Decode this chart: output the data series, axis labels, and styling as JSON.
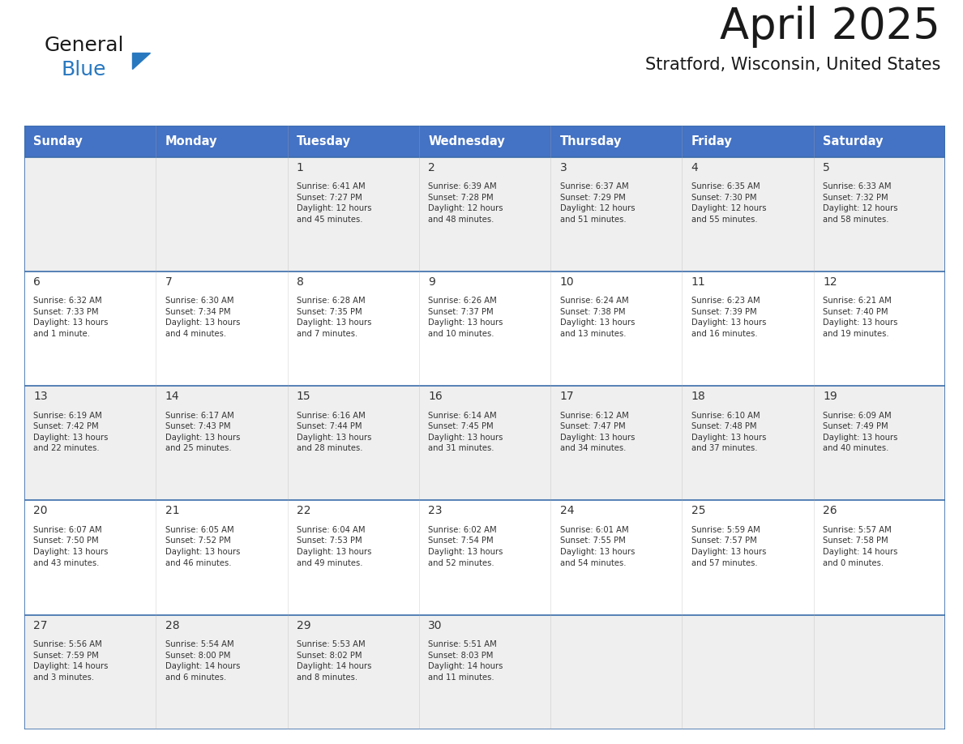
{
  "title": "April 2025",
  "subtitle": "Stratford, Wisconsin, United States",
  "header_bg": "#4472C4",
  "header_text_color": "#FFFFFF",
  "day_names": [
    "Sunday",
    "Monday",
    "Tuesday",
    "Wednesday",
    "Thursday",
    "Friday",
    "Saturday"
  ],
  "row_bg_odd": "#EFEFEF",
  "row_bg_even": "#FFFFFF",
  "cell_text_color": "#333333",
  "grid_color": "#3A6DAA",
  "logo_general_color": "#1a1a1a",
  "logo_blue_color": "#2878C0",
  "calendar": [
    [
      {
        "day": "",
        "info": ""
      },
      {
        "day": "",
        "info": ""
      },
      {
        "day": "1",
        "info": "Sunrise: 6:41 AM\nSunset: 7:27 PM\nDaylight: 12 hours\nand 45 minutes."
      },
      {
        "day": "2",
        "info": "Sunrise: 6:39 AM\nSunset: 7:28 PM\nDaylight: 12 hours\nand 48 minutes."
      },
      {
        "day": "3",
        "info": "Sunrise: 6:37 AM\nSunset: 7:29 PM\nDaylight: 12 hours\nand 51 minutes."
      },
      {
        "day": "4",
        "info": "Sunrise: 6:35 AM\nSunset: 7:30 PM\nDaylight: 12 hours\nand 55 minutes."
      },
      {
        "day": "5",
        "info": "Sunrise: 6:33 AM\nSunset: 7:32 PM\nDaylight: 12 hours\nand 58 minutes."
      }
    ],
    [
      {
        "day": "6",
        "info": "Sunrise: 6:32 AM\nSunset: 7:33 PM\nDaylight: 13 hours\nand 1 minute."
      },
      {
        "day": "7",
        "info": "Sunrise: 6:30 AM\nSunset: 7:34 PM\nDaylight: 13 hours\nand 4 minutes."
      },
      {
        "day": "8",
        "info": "Sunrise: 6:28 AM\nSunset: 7:35 PM\nDaylight: 13 hours\nand 7 minutes."
      },
      {
        "day": "9",
        "info": "Sunrise: 6:26 AM\nSunset: 7:37 PM\nDaylight: 13 hours\nand 10 minutes."
      },
      {
        "day": "10",
        "info": "Sunrise: 6:24 AM\nSunset: 7:38 PM\nDaylight: 13 hours\nand 13 minutes."
      },
      {
        "day": "11",
        "info": "Sunrise: 6:23 AM\nSunset: 7:39 PM\nDaylight: 13 hours\nand 16 minutes."
      },
      {
        "day": "12",
        "info": "Sunrise: 6:21 AM\nSunset: 7:40 PM\nDaylight: 13 hours\nand 19 minutes."
      }
    ],
    [
      {
        "day": "13",
        "info": "Sunrise: 6:19 AM\nSunset: 7:42 PM\nDaylight: 13 hours\nand 22 minutes."
      },
      {
        "day": "14",
        "info": "Sunrise: 6:17 AM\nSunset: 7:43 PM\nDaylight: 13 hours\nand 25 minutes."
      },
      {
        "day": "15",
        "info": "Sunrise: 6:16 AM\nSunset: 7:44 PM\nDaylight: 13 hours\nand 28 minutes."
      },
      {
        "day": "16",
        "info": "Sunrise: 6:14 AM\nSunset: 7:45 PM\nDaylight: 13 hours\nand 31 minutes."
      },
      {
        "day": "17",
        "info": "Sunrise: 6:12 AM\nSunset: 7:47 PM\nDaylight: 13 hours\nand 34 minutes."
      },
      {
        "day": "18",
        "info": "Sunrise: 6:10 AM\nSunset: 7:48 PM\nDaylight: 13 hours\nand 37 minutes."
      },
      {
        "day": "19",
        "info": "Sunrise: 6:09 AM\nSunset: 7:49 PM\nDaylight: 13 hours\nand 40 minutes."
      }
    ],
    [
      {
        "day": "20",
        "info": "Sunrise: 6:07 AM\nSunset: 7:50 PM\nDaylight: 13 hours\nand 43 minutes."
      },
      {
        "day": "21",
        "info": "Sunrise: 6:05 AM\nSunset: 7:52 PM\nDaylight: 13 hours\nand 46 minutes."
      },
      {
        "day": "22",
        "info": "Sunrise: 6:04 AM\nSunset: 7:53 PM\nDaylight: 13 hours\nand 49 minutes."
      },
      {
        "day": "23",
        "info": "Sunrise: 6:02 AM\nSunset: 7:54 PM\nDaylight: 13 hours\nand 52 minutes."
      },
      {
        "day": "24",
        "info": "Sunrise: 6:01 AM\nSunset: 7:55 PM\nDaylight: 13 hours\nand 54 minutes."
      },
      {
        "day": "25",
        "info": "Sunrise: 5:59 AM\nSunset: 7:57 PM\nDaylight: 13 hours\nand 57 minutes."
      },
      {
        "day": "26",
        "info": "Sunrise: 5:57 AM\nSunset: 7:58 PM\nDaylight: 14 hours\nand 0 minutes."
      }
    ],
    [
      {
        "day": "27",
        "info": "Sunrise: 5:56 AM\nSunset: 7:59 PM\nDaylight: 14 hours\nand 3 minutes."
      },
      {
        "day": "28",
        "info": "Sunrise: 5:54 AM\nSunset: 8:00 PM\nDaylight: 14 hours\nand 6 minutes."
      },
      {
        "day": "29",
        "info": "Sunrise: 5:53 AM\nSunset: 8:02 PM\nDaylight: 14 hours\nand 8 minutes."
      },
      {
        "day": "30",
        "info": "Sunrise: 5:51 AM\nSunset: 8:03 PM\nDaylight: 14 hours\nand 11 minutes."
      },
      {
        "day": "",
        "info": ""
      },
      {
        "day": "",
        "info": ""
      },
      {
        "day": "",
        "info": ""
      }
    ]
  ],
  "fig_width": 11.88,
  "fig_height": 9.18,
  "dpi": 100
}
